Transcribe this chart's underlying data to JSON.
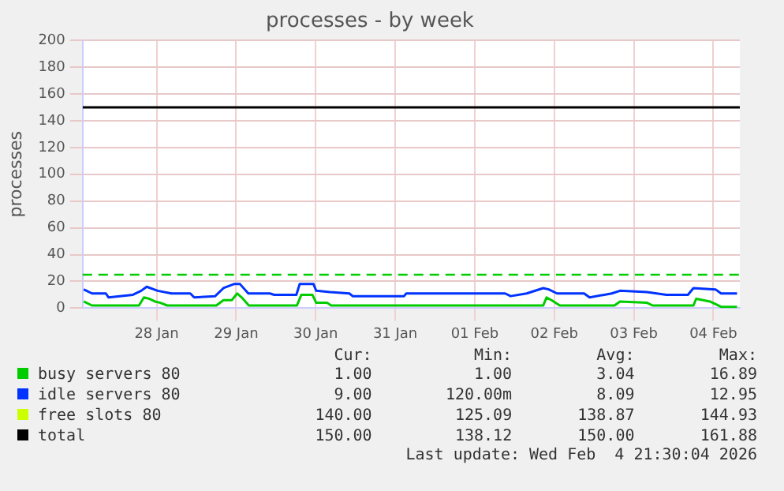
{
  "chart_data": {
    "type": "line",
    "title": "processes - by week",
    "ylabel": "processes",
    "xlim": [
      "2026-01-27T13:40",
      "2026-02-04T20:00"
    ],
    "xticks": [
      {
        "value": "2026-01-28T12:00",
        "label": "28 Jan"
      },
      {
        "value": "2026-01-29T12:00",
        "label": "29 Jan"
      },
      {
        "value": "2026-01-30T12:00",
        "label": "30 Jan"
      },
      {
        "value": "2026-01-31T12:00",
        "label": "31 Jan"
      },
      {
        "value": "2026-02-01T12:00",
        "label": "01 Feb"
      },
      {
        "value": "2026-02-02T12:00",
        "label": "02 Feb"
      },
      {
        "value": "2026-02-03T12:00",
        "label": "03 Feb"
      },
      {
        "value": "2026-02-04T12:00",
        "label": "04 Feb"
      }
    ],
    "ylim": [
      0,
      200
    ],
    "yticks": [
      0,
      20,
      40,
      60,
      80,
      100,
      120,
      140,
      160,
      180,
      200
    ],
    "grid": true,
    "legend": "bottom",
    "marker": "none",
    "line_style": "solid",
    "series": [
      {
        "name": "busy servers 80",
        "color": "#00cc00",
        "x": [
          "2026-01-27T14:00",
          "2026-01-27T16:30",
          "2026-01-28T06:40",
          "2026-01-28T08:10",
          "2026-01-28T09:50",
          "2026-01-28T11:30",
          "2026-01-28T13:10",
          "2026-01-28T15:10",
          "2026-01-29T06:00",
          "2026-01-29T08:10",
          "2026-01-29T10:40",
          "2026-01-29T12:20",
          "2026-01-29T13:40",
          "2026-01-29T15:50",
          "2026-01-30T06:20",
          "2026-01-30T07:40",
          "2026-01-30T11:00",
          "2026-01-30T12:10",
          "2026-01-30T15:30",
          "2026-01-30T16:40",
          "2026-02-02T08:40",
          "2026-02-02T09:40",
          "2026-02-02T11:10",
          "2026-02-02T13:40",
          "2026-02-03T06:10",
          "2026-02-03T07:50",
          "2026-02-03T16:00",
          "2026-02-03T17:40",
          "2026-02-04T06:00",
          "2026-02-04T06:50",
          "2026-02-04T11:00",
          "2026-02-04T14:20",
          "2026-02-04T19:10"
        ],
        "values": [
          5,
          2,
          2,
          8,
          7,
          5,
          4,
          2,
          2,
          6,
          6,
          11,
          8,
          2,
          2,
          10,
          10,
          4,
          4,
          2,
          2,
          8,
          6,
          2,
          2,
          5,
          4,
          2,
          2,
          7,
          5,
          1,
          1
        ]
      },
      {
        "name": "idle servers 80",
        "color": "#0033ff",
        "x": [
          "2026-01-27T14:00",
          "2026-01-27T16:30",
          "2026-01-27T20:40",
          "2026-01-27T21:30",
          "2026-01-28T04:50",
          "2026-01-28T07:20",
          "2026-01-28T09:00",
          "2026-01-28T12:20",
          "2026-01-28T16:30",
          "2026-01-28T22:10",
          "2026-01-28T23:20",
          "2026-01-29T05:40",
          "2026-01-29T08:10",
          "2026-01-29T11:20",
          "2026-01-29T13:10",
          "2026-01-29T15:40",
          "2026-01-29T22:10",
          "2026-01-29T23:30",
          "2026-01-30T06:10",
          "2026-01-30T07:10",
          "2026-01-30T11:20",
          "2026-01-30T12:10",
          "2026-01-30T16:20",
          "2026-01-30T22:10",
          "2026-01-30T23:10",
          "2026-01-31T14:40",
          "2026-01-31T15:20",
          "2026-01-31T23:40",
          "2026-02-01T21:10",
          "2026-02-01T22:50",
          "2026-02-02T03:40",
          "2026-02-02T08:40",
          "2026-02-02T10:20",
          "2026-02-02T12:50",
          "2026-02-02T21:00",
          "2026-02-02T22:40",
          "2026-02-03T05:20",
          "2026-02-03T07:50",
          "2026-02-03T16:00",
          "2026-02-03T21:50",
          "2026-02-04T04:20",
          "2026-02-04T06:00",
          "2026-02-04T12:40",
          "2026-02-04T14:20",
          "2026-02-04T19:10"
        ],
        "values": [
          14,
          11,
          11,
          8,
          10,
          13,
          16,
          13,
          11,
          11,
          8,
          9,
          15,
          18,
          18,
          11,
          11,
          10,
          10,
          18,
          18,
          13,
          12,
          11,
          9,
          9,
          11,
          11,
          11,
          9,
          11,
          15,
          14,
          11,
          11,
          8,
          11,
          13,
          12,
          10,
          10,
          15,
          14,
          11,
          11
        ]
      },
      {
        "name": "free slots 80",
        "color": "#ccff00",
        "values": [
          null
        ]
      },
      {
        "name": "total",
        "color": "#000000",
        "x": [
          "2026-01-27T13:40",
          "2026-02-04T20:00"
        ],
        "values": [
          150,
          150
        ]
      }
    ],
    "ref_lines": [
      {
        "axis": "y",
        "value": 25,
        "label": null,
        "color": "#00cc00",
        "line_style": "dashed"
      }
    ],
    "annotations": [
      "Cur:",
      "Min:",
      "Avg:",
      "Max:",
      "1.00",
      "1.00",
      "3.04",
      "16.89",
      "9.00",
      "120.00m",
      "8.09",
      "12.95",
      "140.00",
      "125.09",
      "138.87",
      "144.93",
      "150.00",
      "138.12",
      "150.00",
      "161.88",
      "Last update: Wed Feb  4 21:30:04 2026"
    ]
  }
}
